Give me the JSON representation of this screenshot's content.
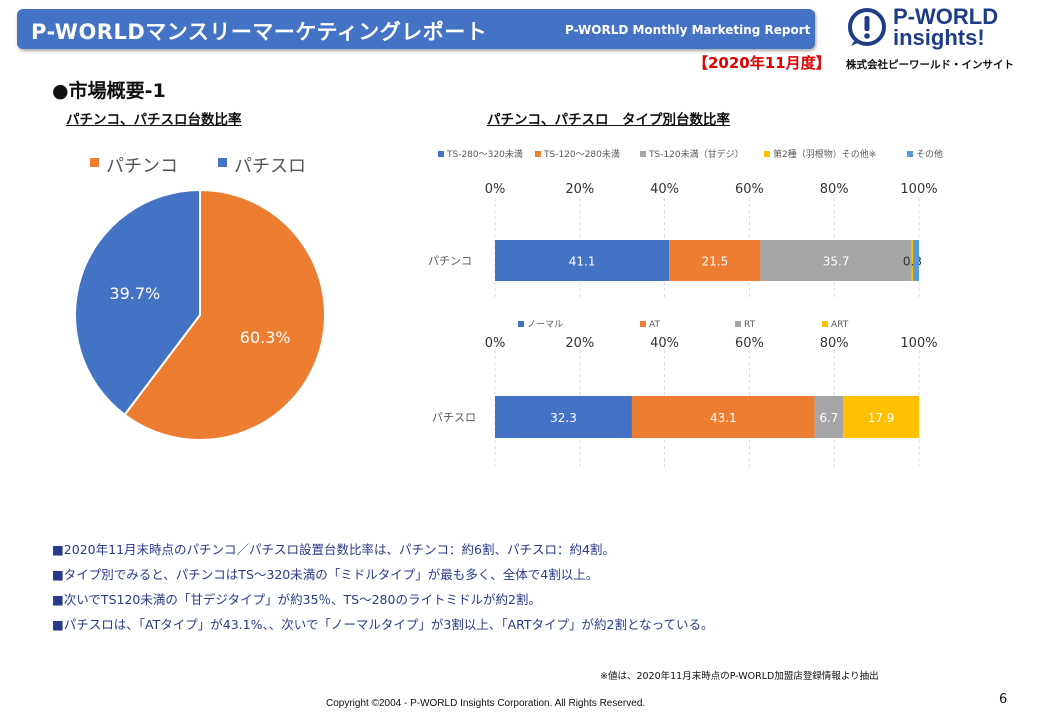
{
  "header": {
    "title": "P-WORLDマンスリーマーケティングレポート",
    "subtitle": "P-WORLD Monthly Marketing Report",
    "month": "【2020年11月度】",
    "company": "株式会社ピーワールド・インサイト",
    "logo_line1": "P-WORLD",
    "logo_line2": "insights!",
    "logo_color": "#1f3c88"
  },
  "section_title": "●市場概要-1",
  "chart_data": [
    {
      "type": "pie",
      "title": "パチンコ、パチスロ台数比率",
      "legend_position": "top",
      "slices": [
        {
          "name": "パチンコ",
          "value": 60.3,
          "label": "60.3%",
          "color": "#ed7d31"
        },
        {
          "name": "パチスロ",
          "value": 39.7,
          "label": "39.7%",
          "color": "#4472c4"
        }
      ]
    },
    {
      "type": "bar",
      "orientation": "horizontal",
      "stacked": true,
      "title": "パチンコ、パチスロ　タイプ別台数比率",
      "legend_position": "top",
      "xlim": [
        0,
        100
      ],
      "x_ticks": [
        "0%",
        "20%",
        "40%",
        "60%",
        "80%",
        "100%"
      ],
      "categories": [
        "パチンコ"
      ],
      "series": [
        {
          "name": "TS-280～320未満",
          "values": [
            41.1
          ],
          "color": "#4472c4"
        },
        {
          "name": "TS-120～280未満",
          "values": [
            21.5
          ],
          "color": "#ed7d31"
        },
        {
          "name": "TS-120未満（甘デジ）",
          "values": [
            35.7
          ],
          "color": "#a5a5a5"
        },
        {
          "name": "第2種（羽根物）その他※",
          "values": [
            0.3
          ],
          "color": "#ffc000"
        },
        {
          "name": "その他",
          "values": [
            1.4
          ],
          "color": "#5b9bd5"
        }
      ],
      "data_labels": [
        "41.1",
        "21.5",
        "35.7",
        "0.3"
      ]
    },
    {
      "type": "bar",
      "orientation": "horizontal",
      "stacked": true,
      "legend_position": "top",
      "xlim": [
        0,
        100
      ],
      "x_ticks": [
        "0%",
        "20%",
        "40%",
        "60%",
        "80%",
        "100%"
      ],
      "categories": [
        "パチスロ"
      ],
      "series": [
        {
          "name": "ノーマル",
          "values": [
            32.3
          ],
          "color": "#4472c4"
        },
        {
          "name": "AT",
          "values": [
            43.1
          ],
          "color": "#ed7d31"
        },
        {
          "name": "RT",
          "values": [
            6.7
          ],
          "color": "#a5a5a5"
        },
        {
          "name": "ART",
          "values": [
            17.9
          ],
          "color": "#ffc000"
        }
      ],
      "data_labels": [
        "32.3",
        "43.1",
        "6.7",
        "17.9"
      ]
    }
  ],
  "bullets": [
    "■2020年11月末時点のパチンコ／パチスロ設置台数比率は、パチンコ：約6割、パチスロ：約4割。",
    "■タイプ別でみると、パチンコはTS～320未満の「ミドルタイプ」が最も多く、全体で4割以上。",
    "■次いでTS120未満の「甘デジタイプ」が約35％、TS～280のライトミドルが約2割。",
    "■パチスロは、「ATタイプ」が43.1%、、次いで「ノーマルタイプ」が3割以上、「ARTタイプ」が約2割となっている。"
  ],
  "note": "※値は、2020年11月末時点のP-WORLD加盟店登録情報より抽出",
  "copyright": "Copyright ©2004 -  P-WORLD  Insights Corporation. All Rights Reserved.",
  "page_number": "6"
}
